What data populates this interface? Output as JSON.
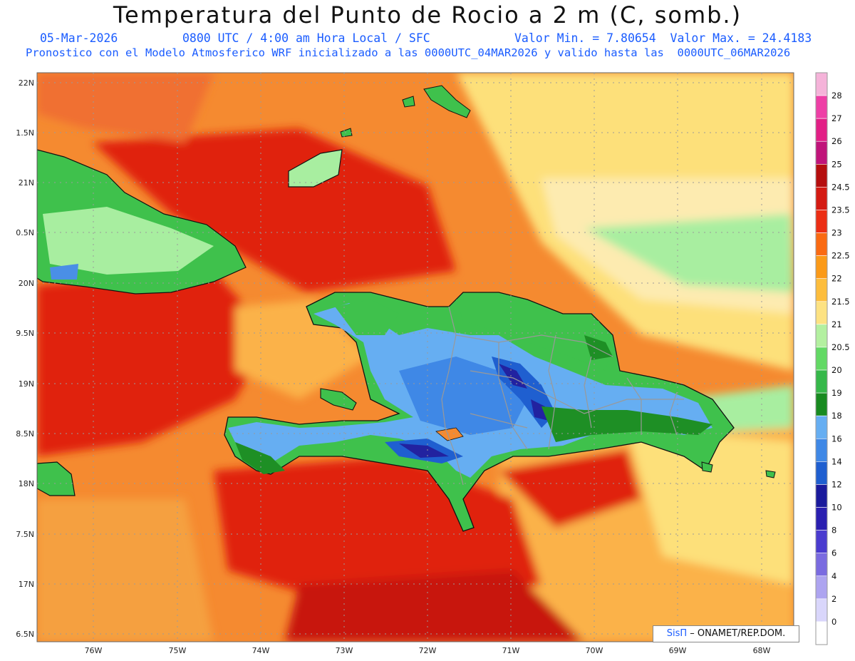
{
  "title": "Temperatura del Punto de Rocio a 2 m (C, somb.)",
  "date": "05-Mar-2026",
  "time": "0800 UTC / 4:00 am Hora Local / SFC",
  "minmax": "Valor Min. = 7.80654  Valor Max. = 24.4183",
  "model_line": "Pronostico con el Modelo Atmosferico WRF inicializado a las 0000UTC_04MAR2026 y valido hasta las  0000UTC_06MAR2026",
  "credit": {
    "brand": "SisΠ",
    "org": " – ONAMET/REP.DOM."
  },
  "lat_labels": [
    "22N",
    "1.5N",
    "21N",
    "0.5N",
    "20N",
    "9.5N",
    "19N",
    "8.5N",
    "18N",
    "7.5N",
    "17N",
    "6.5N"
  ],
  "lon_labels": [
    "76W",
    "75W",
    "74W",
    "73W",
    "72W",
    "71W",
    "70W",
    "69W",
    "68W"
  ],
  "colorbar": {
    "labels": [
      "28",
      "27",
      "26",
      "25",
      "24.5",
      "23.5",
      "23",
      "22.5",
      "22",
      "21.5",
      "21",
      "20.5",
      "20",
      "19",
      "18",
      "16",
      "14",
      "12",
      "10",
      "8",
      "6",
      "4",
      "2",
      "0"
    ],
    "colors": [
      "#f5b3d9",
      "#ee3fa6",
      "#e21f86",
      "#c0147a",
      "#b50e0e",
      "#d41a12",
      "#ec2e14",
      "#fa6a12",
      "#fb9a18",
      "#fdbd3c",
      "#fde282",
      "#b3f0a0",
      "#62d964",
      "#36b84a",
      "#188a20",
      "#66aef2",
      "#3f88e6",
      "#1f5fd0",
      "#1a1a9c",
      "#2a1fb0",
      "#4a3bcf",
      "#7a6be0",
      "#ada4f0",
      "#d9d6fb",
      "#ffffff"
    ]
  },
  "colors": {
    "red": "#e0200f",
    "darkred": "#c81510",
    "orange": "#f5782a",
    "lightorange": "#fbb24a",
    "yellow": "#fde07a",
    "lightgreen": "#a8eea0",
    "green": "#3fc14c",
    "darkgreen": "#1e8f25",
    "blue": "#4a8fe6",
    "darkblue": "#2222a0"
  }
}
